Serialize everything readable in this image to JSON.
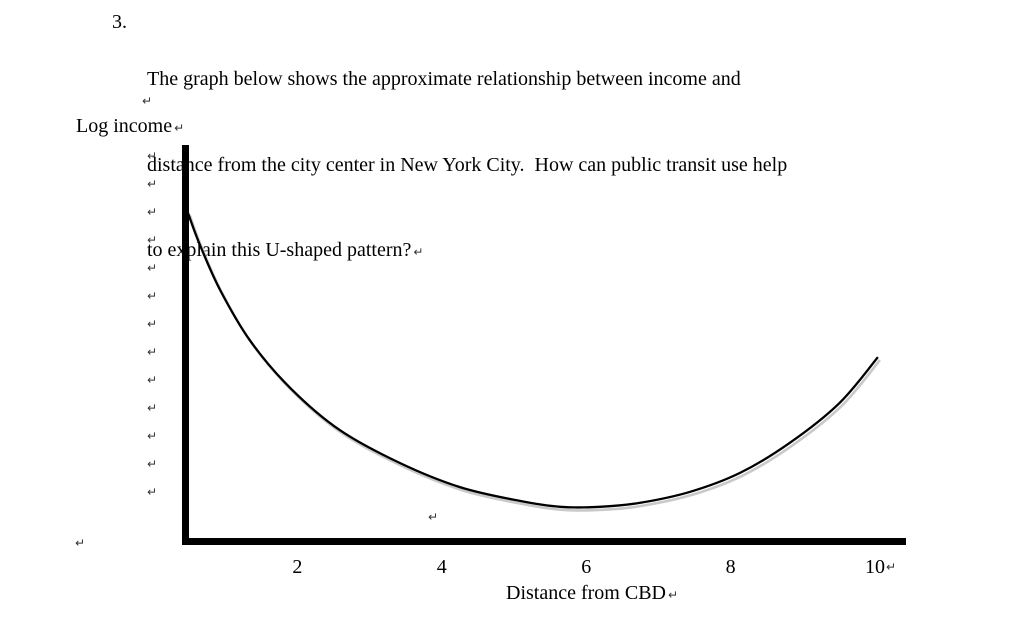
{
  "question": {
    "number": "3.",
    "lines": [
      "The graph below shows the approximate relationship between income and",
      "distance from the city center in New York City.  How can public transit use help",
      "to explain this U-shaped pattern?"
    ]
  },
  "marks": {
    "glyph": "↵"
  },
  "chart_data": {
    "type": "line",
    "title": "",
    "xlabel": "Distance from CBD",
    "ylabel": "Log income",
    "xticks": [
      2,
      4,
      6,
      8,
      10
    ],
    "xlim": [
      0,
      10.5
    ],
    "ylim": [
      0,
      10
    ],
    "grid": false,
    "legend": "none",
    "curve_color": "#000000",
    "shadow_color": "#c9c9c9",
    "axis_color": "#000000",
    "description": "U-shaped curve: log income is high near the CBD, declines steeply to a minimum around distance 5.5-6 from the CBD, then rises again toward distance 10.",
    "x": [
      0.48,
      0.65,
      0.93,
      1.34,
      1.9,
      2.59,
      3.42,
      4.25,
      5.08,
      5.64,
      6.19,
      6.74,
      7.44,
      8.13,
      8.82,
      9.51,
      10.04
    ],
    "y": [
      8.3,
      7.47,
      6.33,
      5.06,
      3.85,
      2.78,
      1.95,
      1.34,
      0.99,
      0.84,
      0.84,
      0.94,
      1.22,
      1.7,
      2.46,
      3.47,
      4.63
    ]
  }
}
